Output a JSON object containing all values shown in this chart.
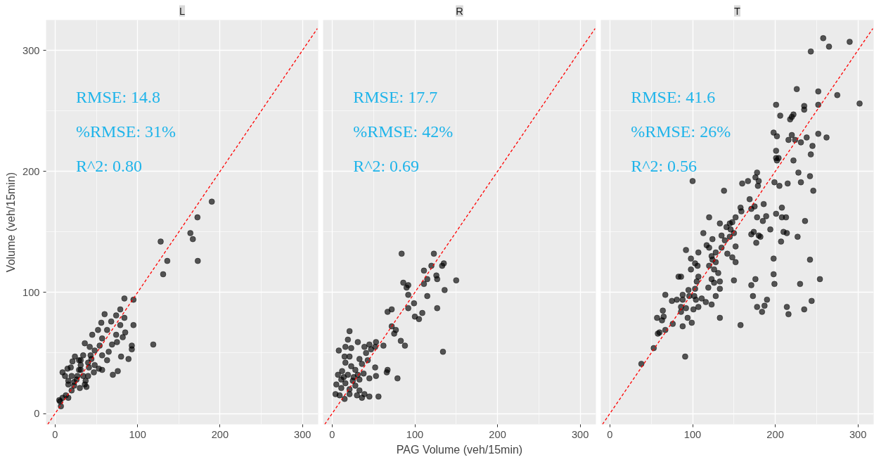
{
  "chart_data": [
    {
      "type": "scatter",
      "title": "L",
      "ylabel": "Volume (veh/15min)",
      "xlim": [
        -11,
        319
      ],
      "ylim": [
        -9,
        325
      ],
      "xticks": [
        0,
        100,
        200,
        300
      ],
      "yticks": [
        0,
        100,
        200,
        300
      ],
      "grid": true,
      "annotations": [
        "RMSE: 14.8",
        "%RMSE: 31%",
        "R^2: 0.80"
      ],
      "series": [
        {
          "color": "#000000",
          "marker": "circle",
          "x": [
            190,
            172.6,
            164,
            167,
            128,
            173,
            136,
            131,
            84,
            95,
            119,
            95,
            79,
            60,
            74,
            84,
            56,
            68,
            79,
            52,
            63,
            85,
            45,
            57,
            74,
            82,
            36,
            42,
            69,
            75,
            93,
            93,
            54,
            48,
            65,
            80,
            89,
            24,
            34,
            43,
            57,
            63,
            21,
            31,
            40,
            48,
            57,
            53,
            15,
            19,
            9,
            12,
            20,
            29,
            34,
            40,
            47,
            70,
            76,
            16,
            26,
            37,
            23,
            16,
            30,
            36,
            38,
            20,
            13,
            16,
            9,
            6,
            7,
            5,
            29,
            31,
            27,
            23,
            31,
            44,
            41
          ],
          "values": [
            175,
            162,
            149,
            144,
            142,
            126,
            126,
            115,
            95,
            94,
            57,
            73,
            86,
            82,
            81,
            79,
            75,
            76,
            73,
            69,
            69,
            67,
            65,
            62,
            65,
            63,
            58,
            55,
            57,
            59,
            56,
            53,
            56,
            52,
            51,
            47,
            45,
            47,
            48,
            48,
            48,
            44,
            43,
            44,
            42,
            40,
            36,
            37,
            37,
            38,
            34,
            31,
            31,
            36,
            31,
            31,
            34,
            32,
            35,
            27,
            28,
            27,
            23,
            24,
            21,
            24,
            22,
            19,
            15,
            13,
            13,
            10,
            6,
            11,
            44,
            40,
            31,
            26,
            36,
            45,
            38
          ]
        },
        {
          "type": "line",
          "color": "#ff0000",
          "line_style": "dashed",
          "x": [
            -9,
            318
          ],
          "values": [
            -9,
            318
          ]
        }
      ]
    },
    {
      "type": "scatter",
      "title": "R",
      "xlabel": "PAG Volume (veh/15min)",
      "xlim": [
        -11,
        319
      ],
      "ylim": [
        -9,
        325
      ],
      "xticks": [
        0,
        100,
        200,
        300
      ],
      "yticks": [
        0,
        100,
        200,
        300
      ],
      "grid": true,
      "tick_labels": "x",
      "annotations": [
        "RMSE: 17.7",
        "%RMSE: 42%",
        "R^2: 0.69"
      ],
      "series": [
        {
          "color": "#000000",
          "marker": "circle",
          "x": [
            84,
            123,
            120,
            135,
            133,
            111,
            126,
            115,
            127,
            150,
            86,
            92,
            90,
            111,
            136,
            92,
            115,
            99,
            92,
            127,
            67,
            72,
            109,
            100,
            105,
            72,
            77,
            75,
            134,
            83,
            88,
            21,
            19,
            31,
            16,
            23,
            8,
            39,
            45,
            53,
            62,
            52,
            47,
            41,
            15,
            21,
            33,
            43,
            16,
            23,
            36,
            52,
            67,
            66,
            12,
            28,
            19,
            31,
            38,
            53,
            45,
            7,
            11,
            79,
            25,
            33,
            5,
            16,
            28,
            11,
            21,
            33,
            4,
            9,
            15,
            21,
            30,
            39,
            36,
            45,
            56,
            26,
            14
          ],
          "values": [
            132,
            132,
            122,
            124,
            122,
            118,
            114,
            111,
            111,
            110,
            108,
            106,
            104,
            107,
            102,
            98,
            97,
            91,
            87,
            87,
            84,
            86,
            83,
            80,
            78,
            72,
            69,
            66,
            51,
            60,
            56,
            68,
            61,
            59,
            55,
            54,
            52,
            55,
            57,
            59,
            56,
            55,
            53,
            50,
            47,
            47,
            45,
            44,
            42,
            39,
            41,
            38,
            36,
            34,
            35,
            36,
            32,
            32,
            33,
            31,
            29,
            32,
            28,
            29,
            27,
            28,
            24,
            25,
            23,
            21,
            20,
            19,
            16,
            15,
            12,
            16,
            15,
            16,
            13,
            14,
            14,
            30,
            30
          ]
        },
        {
          "type": "line",
          "color": "#ff0000",
          "line_style": "dashed",
          "x": [
            -9,
            318
          ],
          "values": [
            -9,
            318
          ]
        }
      ]
    },
    {
      "type": "scatter",
      "title": "T",
      "xlim": [
        -11,
        319
      ],
      "ylim": [
        -9,
        325
      ],
      "xticks": [
        0,
        100,
        200,
        300
      ],
      "yticks": [
        0,
        100,
        200,
        300
      ],
      "grid": true,
      "tick_labels": "x",
      "annotations": [
        "RMSE: 41.6",
        "%RMSE: 26%",
        "R^2: 0.56"
      ],
      "series": [
        {
          "color": "#000000",
          "marker": "circle",
          "x": [
            258,
            265,
            290,
            243,
            302,
            226,
            252,
            275,
            201,
            252,
            235,
            235,
            206,
            222,
            220,
            218,
            198,
            202,
            220,
            216,
            224,
            231,
            238,
            252,
            262,
            245,
            243,
            201,
            201,
            204,
            202,
            222,
            228,
            242,
            231,
            246,
            178,
            176,
            180,
            167,
            160,
            179,
            199,
            205,
            215,
            100,
            138,
            169,
            186,
            175,
            171,
            158,
            159,
            208,
            201,
            120,
            152,
            178,
            189,
            208,
            213,
            185,
            236,
            133,
            141,
            145,
            148,
            146,
            150,
            113,
            135,
            124,
            139,
            145,
            171,
            174,
            180,
            182,
            177,
            194,
            210,
            214,
            227,
            207,
            117,
            120,
            135,
            152,
            92,
            107,
            128,
            142,
            148,
            123,
            98,
            124,
            128,
            152,
            103,
            106,
            120,
            126,
            98,
            131,
            83,
            86,
            107,
            105,
            123,
            126,
            133,
            150,
            119,
            133,
            95,
            103,
            67,
            88,
            96,
            102,
            128,
            75,
            81,
            88,
            104,
            111,
            116,
            123,
            86,
            92,
            107,
            101,
            64,
            86,
            57,
            65,
            63,
            94,
            133,
            99,
            76,
            88,
            158,
            67,
            58,
            60,
            53,
            91,
            38,
            198,
            242,
            198,
            254,
            176,
            171,
            199,
            230,
            173,
            190,
            244,
            178,
            187,
            214,
            235,
            184,
            216
          ],
          "values": [
            310,
            303,
            307,
            299,
            256,
            268,
            266,
            263,
            255,
            255,
            254,
            251,
            246,
            247,
            245,
            243,
            232,
            229,
            230,
            226,
            226,
            224,
            228,
            231,
            228,
            221,
            214,
            217,
            211,
            211,
            209,
            209,
            199,
            196,
            191,
            184,
            199,
            195,
            192,
            192,
            190,
            188,
            191,
            188,
            190,
            192,
            184,
            177,
            173,
            171,
            169,
            170,
            167,
            170,
            165,
            162,
            162,
            162,
            163,
            162,
            162,
            159,
            159,
            157,
            154,
            157,
            158,
            152,
            149,
            149,
            147,
            144,
            143,
            146,
            148,
            150,
            147,
            146,
            141,
            152,
            150,
            149,
            146,
            142,
            139,
            137,
            137,
            138,
            135,
            133,
            133,
            132,
            129,
            130,
            128,
            127,
            125,
            125,
            124,
            122,
            122,
            119,
            119,
            116,
            113,
            113,
            113,
            109,
            111,
            108,
            109,
            110,
            104,
            103,
            102,
            103,
            98,
            98,
            97,
            97,
            97,
            93,
            94,
            94,
            94,
            95,
            92,
            90,
            88,
            87,
            88,
            86,
            85,
            84,
            79,
            80,
            77,
            79,
            79,
            75,
            74,
            72,
            73,
            69,
            66,
            67,
            54,
            47,
            41,
            128,
            127,
            115,
            111,
            111,
            106,
            107,
            107,
            97,
            94,
            93,
            88,
            89,
            88,
            86,
            84,
            82
          ]
        },
        {
          "type": "line",
          "color": "#ff0000",
          "line_style": "dashed",
          "x": [
            -9,
            318
          ],
          "values": [
            -9,
            318
          ]
        }
      ]
    }
  ]
}
